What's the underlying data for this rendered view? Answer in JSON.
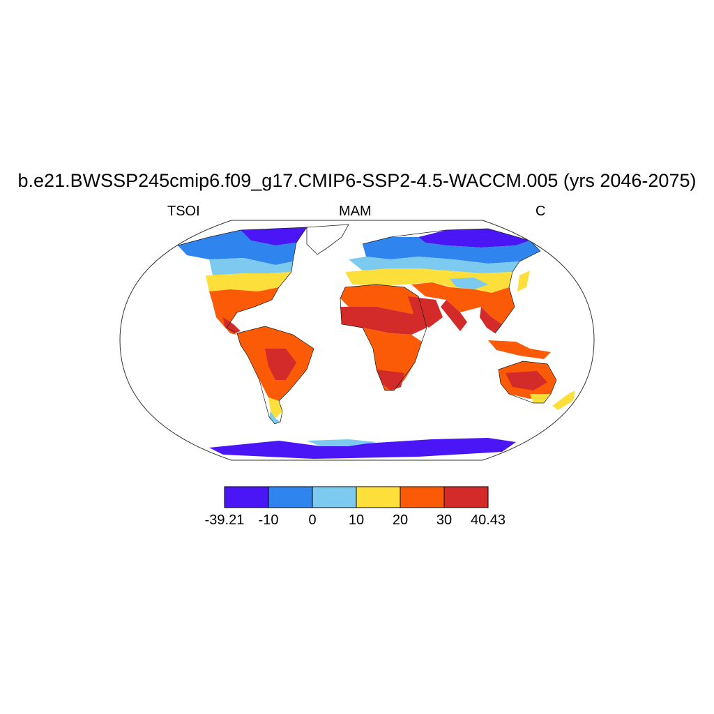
{
  "title": "b.e21.BWSSP245cmip6.f09_g17.CMIP6-SSP2-4.5-WACCM.005 (yrs 2046-2075)",
  "left_label": "TSOI",
  "center_label": "MAM",
  "right_label": "C",
  "colorbar": {
    "colors": [
      "#4a16f5",
      "#2f84ee",
      "#7ccaf0",
      "#fcdf3b",
      "#fb5a06",
      "#d32a2a"
    ],
    "labels": [
      "-39.21",
      "-10",
      "0",
      "10",
      "20",
      "30",
      "40.43"
    ]
  }
}
